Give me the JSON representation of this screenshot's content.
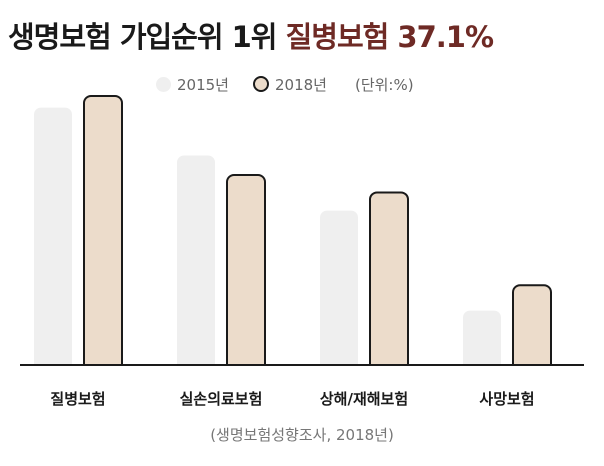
{
  "title": {
    "main": "생명보험 가입순위 1위",
    "accent": "질병보험 37.1%"
  },
  "legend": {
    "unit": "(단위:%)"
  },
  "source": "(생명보험성향조사, 2018년)",
  "colors": {
    "series_2015": "#efefef",
    "series_2018": "#ecdccb",
    "series_2018_stroke": "#1a1a1a",
    "accent": "#6e2a25",
    "baseline": "#1a1a1a"
  },
  "chart_data": {
    "type": "bar",
    "categories": [
      "질병보험",
      "실손의료보험",
      "상해/재해보험",
      "사망보험"
    ],
    "series": [
      {
        "name": "2015년",
        "values": [
          35.5,
          28.9,
          21.3,
          7.5
        ]
      },
      {
        "name": "2018년",
        "values": [
          37.1,
          26.2,
          23.8,
          11.0
        ]
      }
    ],
    "ylim": [
      0,
      40
    ],
    "grid": false,
    "legend_position": "top-center"
  }
}
